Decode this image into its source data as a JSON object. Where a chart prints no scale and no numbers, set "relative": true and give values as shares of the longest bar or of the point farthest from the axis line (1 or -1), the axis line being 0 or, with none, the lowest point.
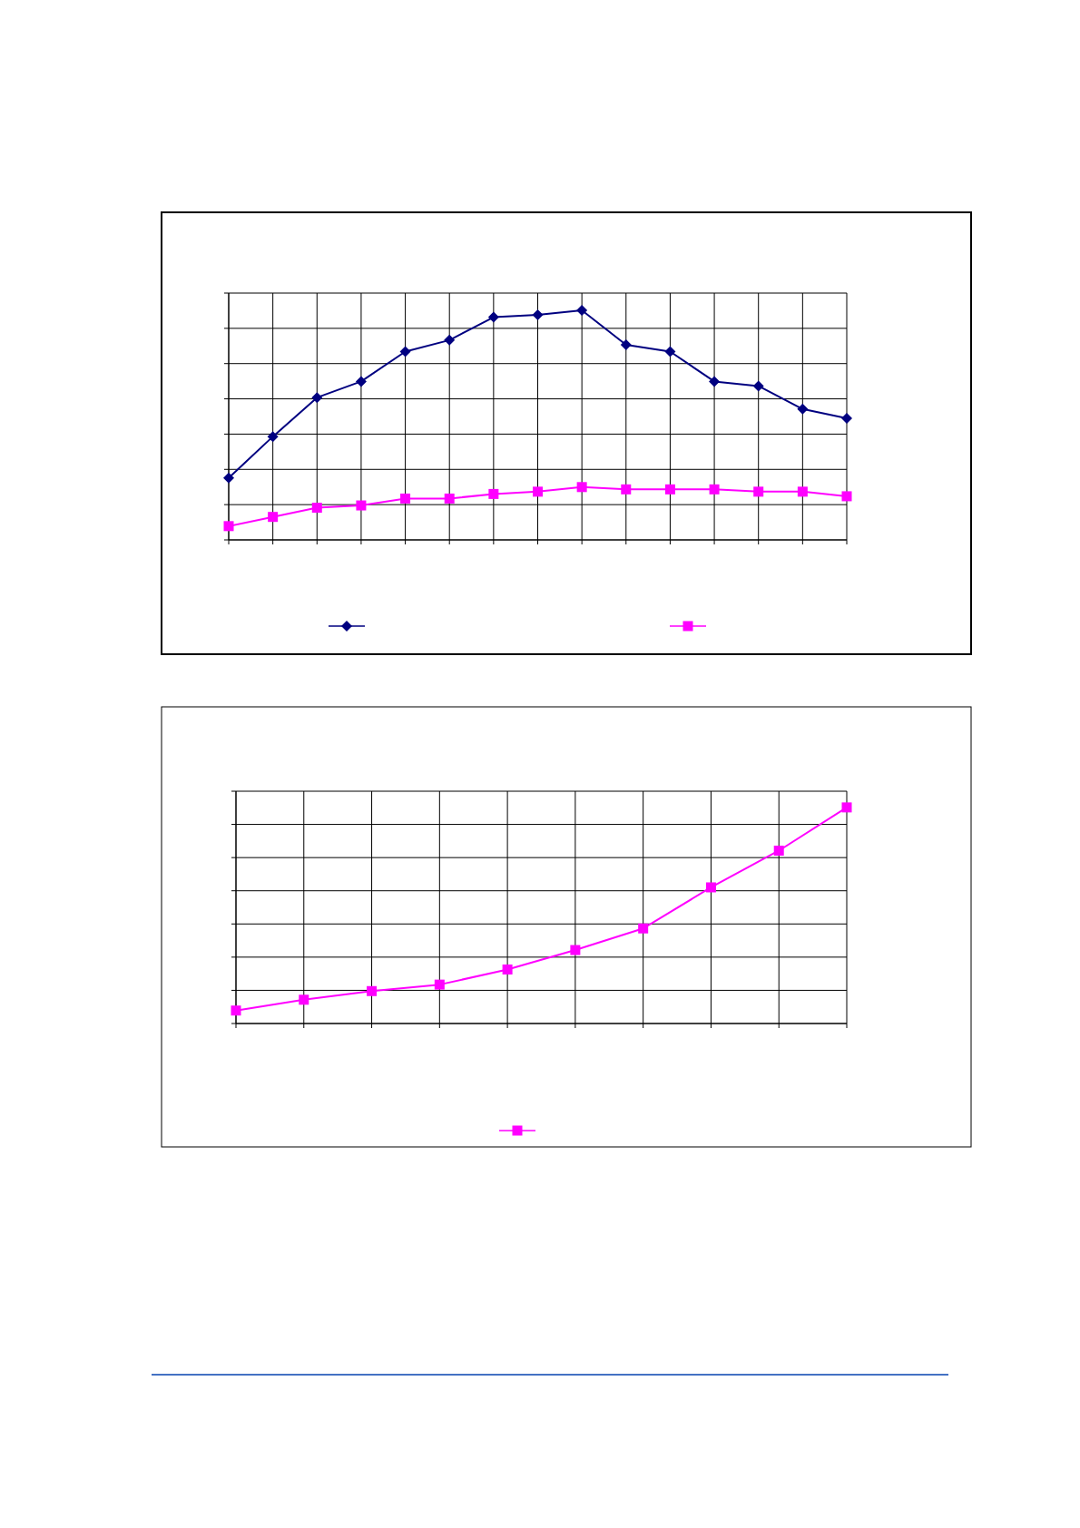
{
  "chart_data": [
    {
      "type": "line",
      "relative": true,
      "categories": [
        null,
        null,
        null,
        null,
        null,
        null,
        null,
        null,
        null,
        null,
        null,
        null,
        null,
        null,
        null
      ],
      "grid": true,
      "series": [
        {
          "color": "#000080",
          "marker": "diamond",
          "values": [
            0.27,
            0.45,
            0.62,
            0.69,
            0.82,
            0.87,
            0.97,
            0.98,
            1,
            0.85,
            0.82,
            0.69,
            0.67,
            0.57,
            0.53
          ]
        },
        {
          "color": "#ff00ff",
          "marker": "square",
          "values": [
            0.06,
            0.1,
            0.14,
            0.15,
            0.18,
            0.18,
            0.2,
            0.21,
            0.23,
            0.22,
            0.22,
            0.22,
            0.21,
            0.21,
            0.19
          ]
        }
      ]
    },
    {
      "type": "line",
      "relative": true,
      "categories": [
        null,
        null,
        null,
        null,
        null,
        null,
        null,
        null,
        null,
        null
      ],
      "grid": true,
      "series": [
        {
          "color": "#ff00ff",
          "marker": "square",
          "values": [
            0.06,
            0.11,
            0.15,
            0.18,
            0.25,
            0.34,
            0.44,
            0.63,
            0.8,
            1
          ]
        }
      ]
    }
  ]
}
